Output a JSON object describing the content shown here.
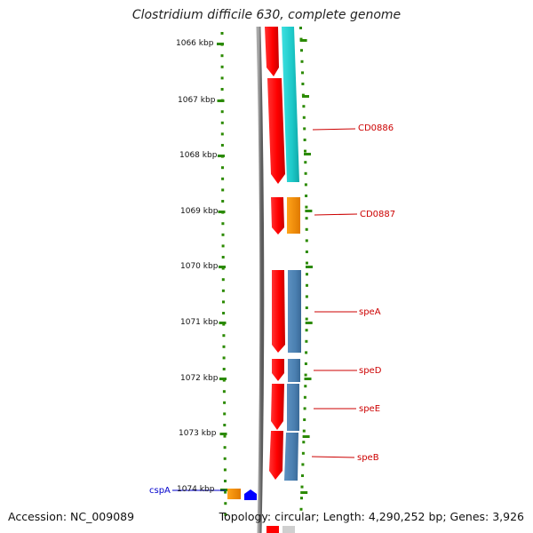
{
  "title": "Clostridium difficile 630, complete genome",
  "footer": {
    "accession": "Accession: NC_009089",
    "summary": "Topology: circular; Length: 4,290,252 bp; Genes: 3,926"
  },
  "ruler": {
    "labels": [
      "1066 kbp",
      "1067 kbp",
      "1068 kbp",
      "1069 kbp",
      "1070 kbp",
      "1071 kbp",
      "1072 kbp",
      "1073 kbp",
      "1074 kbp"
    ],
    "tick_color": "#2b8a00"
  },
  "features": {
    "right": [
      "CD0886",
      "CD0887",
      "speA",
      "speD",
      "speE",
      "speB"
    ],
    "left": [
      "cspA"
    ]
  },
  "colors": {
    "backbone": "#808080",
    "cds_forward": "#ff0000",
    "gene_cyan": "#22cccc",
    "gene_orange": "#f08c00",
    "gene_steelblue": "#4a7fb0",
    "label_red": "#cc0000",
    "label_blue": "#0000cc",
    "marker_blue": "#0000ff"
  }
}
